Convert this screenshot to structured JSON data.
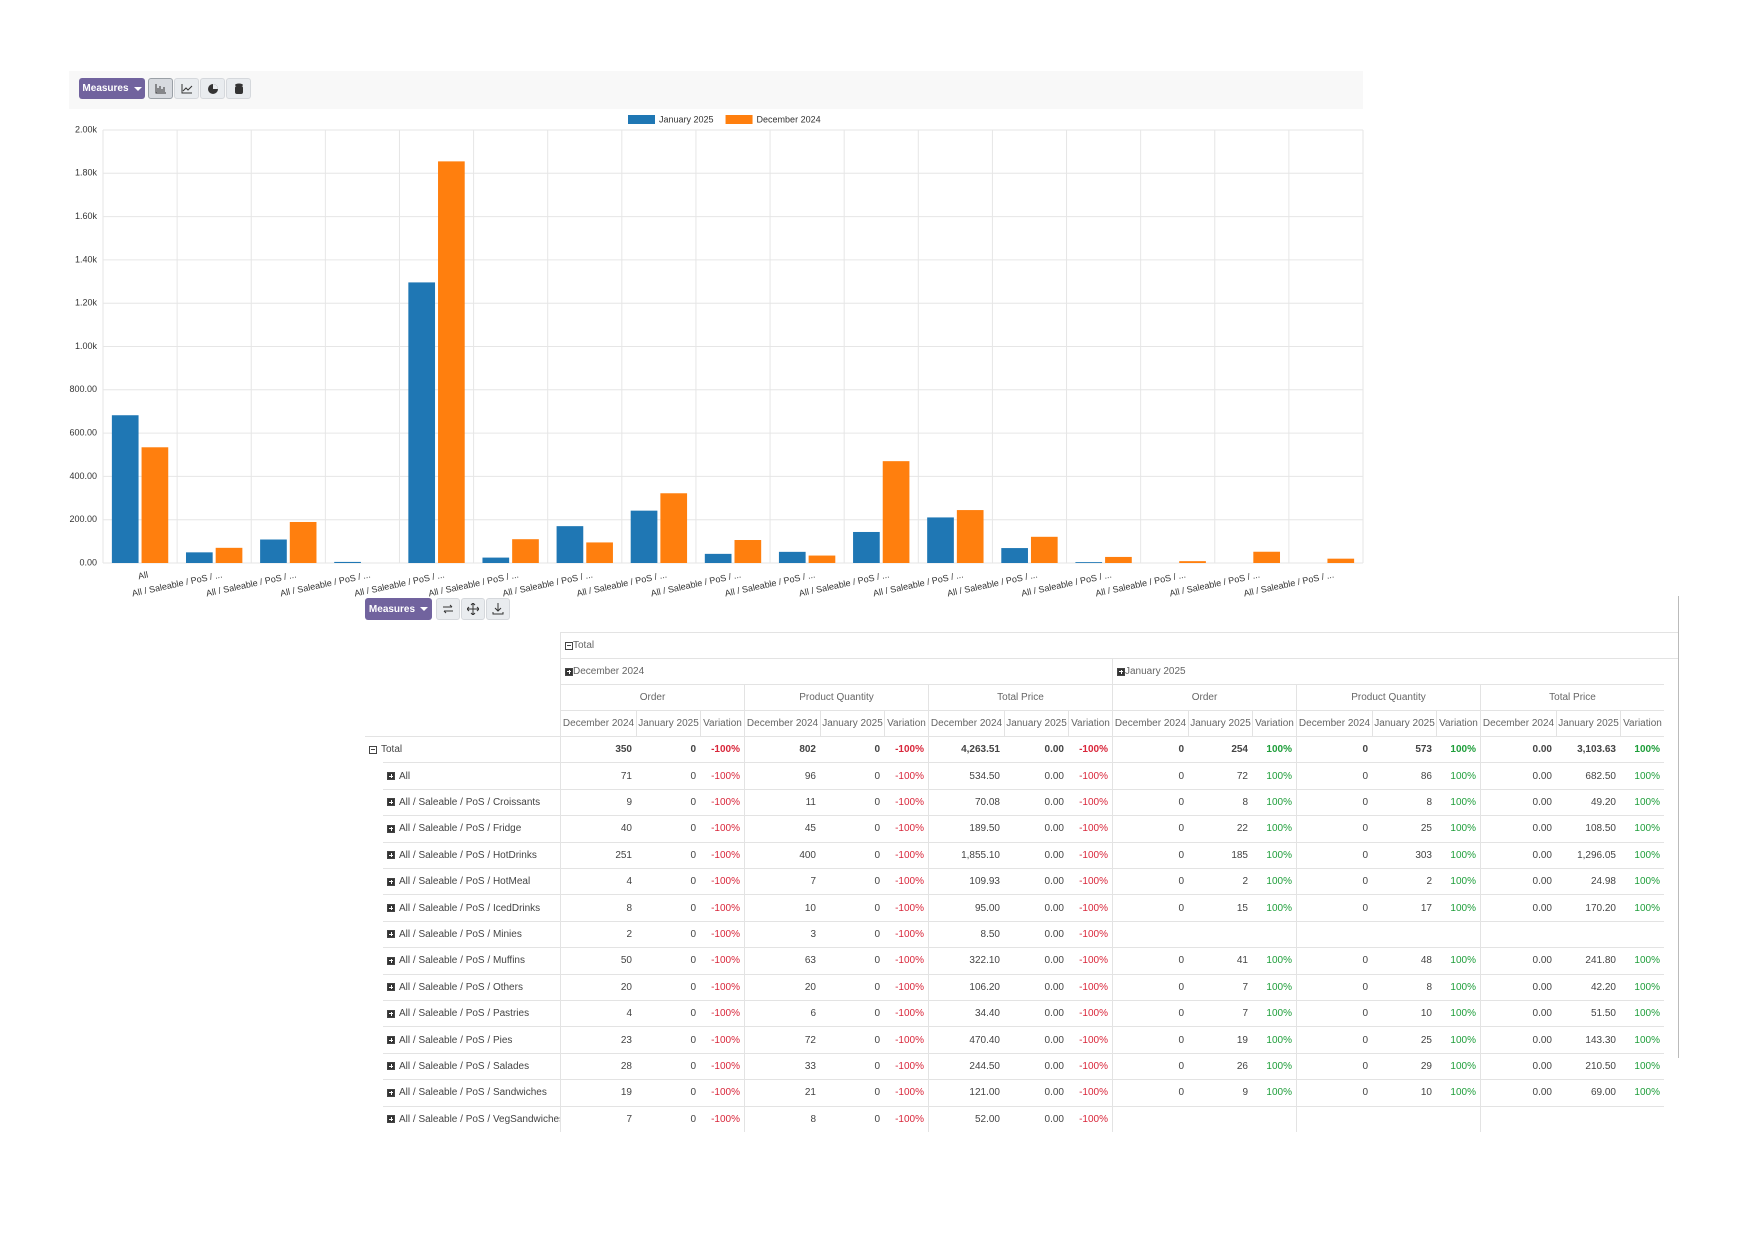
{
  "chart_toolbar": {
    "button": "Measures"
  },
  "chart_data": {
    "type": "bar",
    "categories": [
      "All",
      "All / Saleable / PoS / ...",
      "All / Saleable / PoS / ...",
      "All / Saleable / PoS / ...",
      "All / Saleable / PoS / ...",
      "All / Saleable / PoS / ...",
      "All / Saleable / PoS / ...",
      "All / Saleable / PoS / ...",
      "All / Saleable / PoS / ...",
      "All / Saleable / PoS / ...",
      "All / Saleable / PoS / ...",
      "All / Saleable / PoS / ...",
      "All / Saleable / PoS / ...",
      "All / Saleable / PoS / ...",
      "All / Saleable / PoS / ...",
      "All / Saleable / PoS / ...",
      "All / Saleable / PoS / ..."
    ],
    "series": [
      {
        "name": "January 2025",
        "color": "#1f77b4",
        "values": [
          682.5,
          49.2,
          108.5,
          5,
          1296.05,
          24.98,
          170.2,
          241.8,
          42.2,
          51.5,
          143.3,
          210.5,
          69,
          4,
          0,
          0,
          0
        ]
      },
      {
        "name": "December 2024",
        "color": "#ff7f0e",
        "values": [
          534.5,
          70.08,
          189.5,
          0,
          1855.1,
          109.93,
          95,
          322.1,
          106.2,
          34.4,
          470.4,
          244.5,
          121,
          28,
          8.5,
          52,
          20
        ]
      }
    ],
    "ylim": [
      0,
      2000
    ],
    "yticks": [
      {
        "value": 0,
        "label": "0.00"
      },
      {
        "value": 200,
        "label": "200.00"
      },
      {
        "value": 400,
        "label": "400.00"
      },
      {
        "value": 600,
        "label": "600.00"
      },
      {
        "value": 800,
        "label": "800.00"
      },
      {
        "value": 1000,
        "label": "1.00k"
      },
      {
        "value": 1200,
        "label": "1.20k"
      },
      {
        "value": 1400,
        "label": "1.40k"
      },
      {
        "value": 1600,
        "label": "1.60k"
      },
      {
        "value": 1800,
        "label": "1.80k"
      },
      {
        "value": 2000,
        "label": "2.00k"
      }
    ],
    "grid": true,
    "legend": "top"
  },
  "table_toolbar": {
    "button": "Measures"
  },
  "table": {
    "header_total": "Total",
    "periods": [
      "December 2024",
      "January 2025"
    ],
    "measures": [
      "Order",
      "Product Quantity",
      "Total Price"
    ],
    "subcolumns": [
      "December 2024",
      "January 2025",
      "Variation"
    ],
    "rows": [
      {
        "label": "Total",
        "cells": [
          "350",
          "0",
          "-100%",
          "802",
          "0",
          "-100%",
          "4,263.51",
          "0.00",
          "-100%",
          "0",
          "254",
          "100%",
          "0",
          "573",
          "100%",
          "0.00",
          "3,103.63",
          "100%"
        ]
      },
      {
        "label": "All",
        "cells": [
          "71",
          "0",
          "-100%",
          "96",
          "0",
          "-100%",
          "534.50",
          "0.00",
          "-100%",
          "0",
          "72",
          "100%",
          "0",
          "86",
          "100%",
          "0.00",
          "682.50",
          "100%"
        ]
      },
      {
        "label": "All / Saleable / PoS / Croissants",
        "cells": [
          "9",
          "0",
          "-100%",
          "11",
          "0",
          "-100%",
          "70.08",
          "0.00",
          "-100%",
          "0",
          "8",
          "100%",
          "0",
          "8",
          "100%",
          "0.00",
          "49.20",
          "100%"
        ]
      },
      {
        "label": "All / Saleable / PoS / Fridge",
        "cells": [
          "40",
          "0",
          "-100%",
          "45",
          "0",
          "-100%",
          "189.50",
          "0.00",
          "-100%",
          "0",
          "22",
          "100%",
          "0",
          "25",
          "100%",
          "0.00",
          "108.50",
          "100%"
        ]
      },
      {
        "label": "All / Saleable / PoS / HotDrinks",
        "cells": [
          "251",
          "0",
          "-100%",
          "400",
          "0",
          "-100%",
          "1,855.10",
          "0.00",
          "-100%",
          "0",
          "185",
          "100%",
          "0",
          "303",
          "100%",
          "0.00",
          "1,296.05",
          "100%"
        ]
      },
      {
        "label": "All / Saleable / PoS / HotMeal",
        "cells": [
          "4",
          "0",
          "-100%",
          "7",
          "0",
          "-100%",
          "109.93",
          "0.00",
          "-100%",
          "0",
          "2",
          "100%",
          "0",
          "2",
          "100%",
          "0.00",
          "24.98",
          "100%"
        ]
      },
      {
        "label": "All / Saleable / PoS / IcedDrinks",
        "cells": [
          "8",
          "0",
          "-100%",
          "10",
          "0",
          "-100%",
          "95.00",
          "0.00",
          "-100%",
          "0",
          "15",
          "100%",
          "0",
          "17",
          "100%",
          "0.00",
          "170.20",
          "100%"
        ]
      },
      {
        "label": "All / Saleable / PoS / Minies",
        "cells": [
          "2",
          "0",
          "-100%",
          "3",
          "0",
          "-100%",
          "8.50",
          "0.00",
          "-100%",
          null,
          null,
          null,
          null,
          null,
          null,
          null,
          null,
          null
        ]
      },
      {
        "label": "All / Saleable / PoS / Muffins",
        "cells": [
          "50",
          "0",
          "-100%",
          "63",
          "0",
          "-100%",
          "322.10",
          "0.00",
          "-100%",
          "0",
          "41",
          "100%",
          "0",
          "48",
          "100%",
          "0.00",
          "241.80",
          "100%"
        ]
      },
      {
        "label": "All / Saleable / PoS / Others",
        "cells": [
          "20",
          "0",
          "-100%",
          "20",
          "0",
          "-100%",
          "106.20",
          "0.00",
          "-100%",
          "0",
          "7",
          "100%",
          "0",
          "8",
          "100%",
          "0.00",
          "42.20",
          "100%"
        ]
      },
      {
        "label": "All / Saleable / PoS / Pastries",
        "cells": [
          "4",
          "0",
          "-100%",
          "6",
          "0",
          "-100%",
          "34.40",
          "0.00",
          "-100%",
          "0",
          "7",
          "100%",
          "0",
          "10",
          "100%",
          "0.00",
          "51.50",
          "100%"
        ]
      },
      {
        "label": "All / Saleable / PoS / Pies",
        "cells": [
          "23",
          "0",
          "-100%",
          "72",
          "0",
          "-100%",
          "470.40",
          "0.00",
          "-100%",
          "0",
          "19",
          "100%",
          "0",
          "25",
          "100%",
          "0.00",
          "143.30",
          "100%"
        ]
      },
      {
        "label": "All / Saleable / PoS / Salades",
        "cells": [
          "28",
          "0",
          "-100%",
          "33",
          "0",
          "-100%",
          "244.50",
          "0.00",
          "-100%",
          "0",
          "26",
          "100%",
          "0",
          "29",
          "100%",
          "0.00",
          "210.50",
          "100%"
        ]
      },
      {
        "label": "All / Saleable / PoS / Sandwiches",
        "cells": [
          "19",
          "0",
          "-100%",
          "21",
          "0",
          "-100%",
          "121.00",
          "0.00",
          "-100%",
          "0",
          "9",
          "100%",
          "0",
          "10",
          "100%",
          "0.00",
          "69.00",
          "100%"
        ]
      },
      {
        "label": "All / Saleable / PoS / VegSandwiches",
        "cells": [
          "7",
          "0",
          "-100%",
          "8",
          "0",
          "-100%",
          "52.00",
          "0.00",
          "-100%",
          null,
          null,
          null,
          null,
          null,
          null,
          null,
          null,
          null
        ]
      }
    ]
  }
}
